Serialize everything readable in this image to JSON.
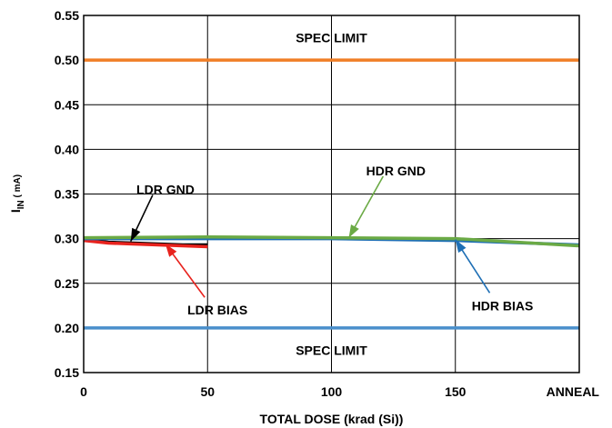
{
  "chart_data": {
    "type": "line",
    "xlabel": "TOTAL DOSE (krad (Si))",
    "ylabel_main": "I",
    "ylabel_sub": "IN",
    "ylabel_unit": " ( mA)",
    "xlim": [
      0,
      200
    ],
    "ylim": [
      0.15,
      0.55
    ],
    "grid": true,
    "x_ticks": [
      {
        "value": 0,
        "label": "0"
      },
      {
        "value": 50,
        "label": "50"
      },
      {
        "value": 100,
        "label": "100"
      },
      {
        "value": 150,
        "label": "150"
      },
      {
        "value": 200,
        "label": "ANNEAL"
      }
    ],
    "y_ticks": [
      {
        "value": 0.15,
        "label": "0.15"
      },
      {
        "value": 0.2,
        "label": "0.20"
      },
      {
        "value": 0.25,
        "label": "0.25"
      },
      {
        "value": 0.3,
        "label": "0.30"
      },
      {
        "value": 0.35,
        "label": "0.35"
      },
      {
        "value": 0.4,
        "label": "0.40"
      },
      {
        "value": 0.45,
        "label": "0.45"
      },
      {
        "value": 0.5,
        "label": "0.50"
      },
      {
        "value": 0.55,
        "label": "0.55"
      }
    ],
    "spec_limits": [
      {
        "value": 0.5,
        "label": "SPEC LIMIT",
        "color": "#F07E26",
        "label_x": 100,
        "label_y": 0.525
      },
      {
        "value": 0.2,
        "label": "SPEC LIMIT",
        "color": "#4A8FCB",
        "label_x": 100,
        "label_y": 0.175
      }
    ],
    "series": [
      {
        "name": "LDR GND",
        "color": "#000000",
        "x": [
          0,
          10,
          20,
          30,
          40,
          50
        ],
        "y": [
          0.299,
          0.296,
          0.295,
          0.294,
          0.293,
          0.293
        ]
      },
      {
        "name": "LDR BIAS",
        "color": "#E8231E",
        "x": [
          0,
          10,
          20,
          30,
          40,
          50
        ],
        "y": [
          0.298,
          0.295,
          0.294,
          0.293,
          0.292,
          0.291
        ]
      },
      {
        "name": "HDR BIAS",
        "color": "#1E6FB5",
        "x": [
          0,
          50,
          100,
          150,
          200
        ],
        "y": [
          0.3,
          0.3,
          0.3,
          0.298,
          0.293
        ]
      },
      {
        "name": "HDR GND",
        "color": "#6BAA45",
        "x": [
          0,
          50,
          100,
          150,
          200
        ],
        "y": [
          0.301,
          0.302,
          0.301,
          0.3,
          0.292
        ]
      }
    ],
    "annotations": [
      {
        "text": "LDR GND",
        "color": "#000000",
        "label_x": 33,
        "label_y": 0.355,
        "tip_x": 19,
        "tip_y": 0.297
      },
      {
        "text": "LDR BIAS",
        "color": "#E8231E",
        "label_x": 54,
        "label_y": 0.22,
        "tip_x": 33,
        "tip_y": 0.294
      },
      {
        "text": "HDR GND",
        "color": "#6BAA45",
        "label_x": 126,
        "label_y": 0.376,
        "tip_x": 107,
        "tip_y": 0.301
      },
      {
        "text": "HDR BIAS",
        "color": "#1E6FB5",
        "label_x": 169,
        "label_y": 0.225,
        "tip_x": 150,
        "tip_y": 0.299
      }
    ]
  }
}
